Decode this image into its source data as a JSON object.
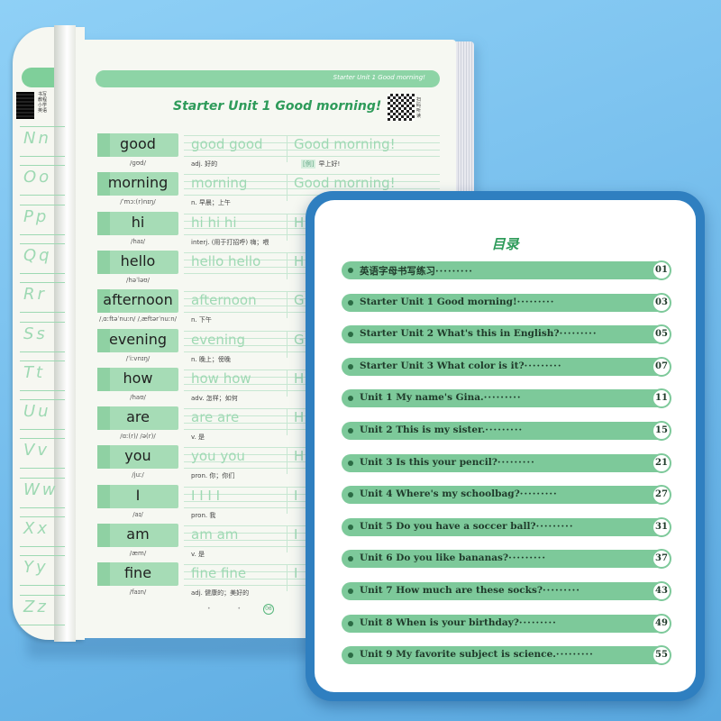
{
  "header_label": "Starter Unit 1 Good morning!",
  "unit_title": "Starter Unit 1 Good morning!",
  "qr_text_left": "书写教程 小学英语",
  "qr_text_right": "扫码听读",
  "alphabet": [
    "Nn",
    "Oo",
    "Pp",
    "Qq",
    "Rr",
    "Ss",
    "Tt",
    "Uu",
    "Vv",
    "Ww",
    "Xx",
    "Yy",
    "Zz"
  ],
  "words": [
    {
      "word": "good",
      "phonetic": "/ɡʊd/",
      "trace": "good    good",
      "phrase": "Good morning!",
      "pos": "adj. 好的",
      "ex_tag": "[例]",
      "example": "早上好!"
    },
    {
      "word": "morning",
      "phonetic": "/ˈmɔː(r)nɪŋ/",
      "trace": "morning",
      "phrase": "Good morning!",
      "pos": "n. 早晨；上午",
      "ex_tag": "",
      "example": ""
    },
    {
      "word": "hi",
      "phonetic": "/haɪ/",
      "trace": "hi    hi    hi",
      "phrase": "H",
      "pos": "interj. (用于打招呼) 嗨；喂",
      "ex_tag": "",
      "example": ""
    },
    {
      "word": "hello",
      "phonetic": "/həˈləʊ/",
      "trace": "hello    hello",
      "phrase": "H",
      "pos": "",
      "ex_tag": "",
      "example": ""
    },
    {
      "word": "afternoon",
      "phonetic": "/ˌɑːftəˈnuːn/ /ˌæftərˈnuːn/",
      "trace": "afternoon",
      "phrase": "G",
      "pos": "n. 下午",
      "ex_tag": "",
      "example": ""
    },
    {
      "word": "evening",
      "phonetic": "/ˈiːvnɪŋ/",
      "trace": "evening",
      "phrase": "G",
      "pos": "n. 晚上；傍晚",
      "ex_tag": "",
      "example": ""
    },
    {
      "word": "how",
      "phonetic": "/haʊ/",
      "trace": "how    how",
      "phrase": "H",
      "pos": "adv. 怎样；如何",
      "ex_tag": "",
      "example": ""
    },
    {
      "word": "are",
      "phonetic": "/ɑː(r)/ /ə(r)/",
      "trace": "are    are",
      "phrase": "H",
      "pos": "v. 是",
      "ex_tag": "",
      "example": ""
    },
    {
      "word": "you",
      "phonetic": "/juː/",
      "trace": "you    you",
      "phrase": "H",
      "pos": "pron. 你；你们",
      "ex_tag": "",
      "example": ""
    },
    {
      "word": "I",
      "phonetic": "/aɪ/",
      "trace": "I    I    I    I",
      "phrase": "I",
      "pos": "pron. 我",
      "ex_tag": "",
      "example": ""
    },
    {
      "word": "am",
      "phonetic": "/æm/",
      "trace": "am    am",
      "phrase": "I",
      "pos": "v. 是",
      "ex_tag": "",
      "example": ""
    },
    {
      "word": "fine",
      "phonetic": "/faɪn/",
      "trace": "fine    fine",
      "phrase": "I",
      "pos": "adj. 健康的；美好的",
      "ex_tag": "",
      "example": ""
    }
  ],
  "page_number": "03",
  "toc": {
    "title": "目录",
    "items": [
      {
        "label": "英语字母书写练习",
        "page": "01"
      },
      {
        "label": "Starter Unit 1 Good morning!",
        "page": "03"
      },
      {
        "label": "Starter Unit 2 What's this in English?",
        "page": "05"
      },
      {
        "label": "Starter Unit 3  What color is it?",
        "page": "07"
      },
      {
        "label": "Unit 1 My name's Gina.",
        "page": "11"
      },
      {
        "label": "Unit 2 This is my sister.",
        "page": "15"
      },
      {
        "label": "Unit 3 Is this your pencil?",
        "page": "21"
      },
      {
        "label": "Unit 4 Where's my schoolbag?",
        "page": "27"
      },
      {
        "label": "Unit 5 Do you have a soccer ball?",
        "page": "31"
      },
      {
        "label": "Unit 6 Do you like bananas?",
        "page": "37"
      },
      {
        "label": "Unit 7 How much are these socks?",
        "page": "43"
      },
      {
        "label": "Unit 8 When is your birthday?",
        "page": "49"
      },
      {
        "label": "Unit 9 My favorite subject is science.",
        "page": "55"
      }
    ]
  },
  "colors": {
    "accent_green": "#7dc99a",
    "title_green": "#2e9b5a",
    "frame_blue": "#2f7fc0",
    "background": "#7ec4ef"
  }
}
